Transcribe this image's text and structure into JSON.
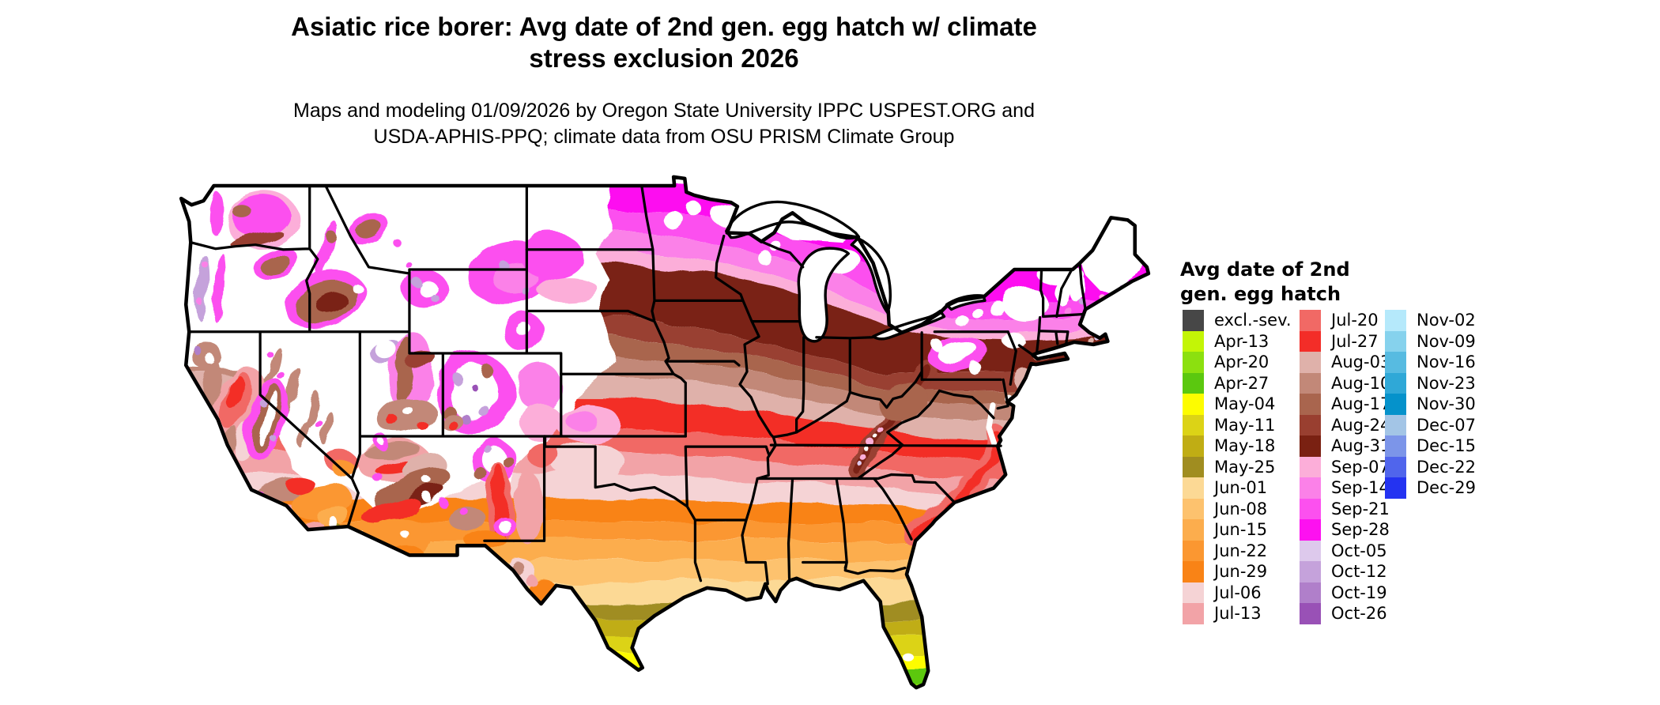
{
  "title": {
    "line1": "Asiatic rice borer: Avg date of 2nd gen. egg hatch w/ climate",
    "line2": "stress exclusion 2026"
  },
  "subtitle": {
    "line1": "Maps and modeling 01/09/2026 by Oregon State University IPPC USPEST.ORG and",
    "line2": "USDA-APHIS-PPQ; climate data from OSU PRISM Climate Group"
  },
  "legend": {
    "title_line1": "Avg date of 2nd",
    "title_line2": "gen. egg hatch",
    "columns": [
      [
        {
          "label": "excl.-sev.",
          "color": "#474747"
        },
        {
          "label": "Apr-13",
          "color": "#c3f506"
        },
        {
          "label": "Apr-20",
          "color": "#8ce00f"
        },
        {
          "label": "Apr-27",
          "color": "#5bc80f"
        },
        {
          "label": "May-04",
          "color": "#fdfc00"
        },
        {
          "label": "May-11",
          "color": "#dcd316"
        },
        {
          "label": "May-18",
          "color": "#c0ad14"
        },
        {
          "label": "May-25",
          "color": "#a08d20"
        },
        {
          "label": "Jun-01",
          "color": "#fcd995"
        },
        {
          "label": "Jun-08",
          "color": "#fdc26e"
        },
        {
          "label": "Jun-15",
          "color": "#fcad4d"
        },
        {
          "label": "Jun-22",
          "color": "#fb9731"
        },
        {
          "label": "Jun-29",
          "color": "#f98316"
        },
        {
          "label": "Jul-06",
          "color": "#f5d3d5"
        },
        {
          "label": "Jul-13",
          "color": "#f2a3a7"
        }
      ],
      [
        {
          "label": "Jul-20",
          "color": "#f16965"
        },
        {
          "label": "Jul-27",
          "color": "#f32d28"
        },
        {
          "label": "Aug-03",
          "color": "#dfb1aa"
        },
        {
          "label": "Aug-10",
          "color": "#c28878"
        },
        {
          "label": "Aug-17",
          "color": "#a9654e"
        },
        {
          "label": "Aug-24",
          "color": "#993f30"
        },
        {
          "label": "Aug-31",
          "color": "#7a2112"
        },
        {
          "label": "Sep-07",
          "color": "#fcaed9"
        },
        {
          "label": "Sep-14",
          "color": "#fb81e8"
        },
        {
          "label": "Sep-21",
          "color": "#fc50ef"
        },
        {
          "label": "Sep-28",
          "color": "#fd11f0"
        },
        {
          "label": "Oct-05",
          "color": "#ddc9ec"
        },
        {
          "label": "Oct-12",
          "color": "#c5a2db"
        },
        {
          "label": "Oct-19",
          "color": "#b07fca"
        },
        {
          "label": "Oct-26",
          "color": "#9951b6"
        }
      ],
      [
        {
          "label": "Nov-02",
          "color": "#b5e9fb"
        },
        {
          "label": "Nov-09",
          "color": "#86d2ed"
        },
        {
          "label": "Nov-16",
          "color": "#57bbe1"
        },
        {
          "label": "Nov-23",
          "color": "#2fa8d7"
        },
        {
          "label": "Nov-30",
          "color": "#0592cb"
        },
        {
          "label": "Dec-07",
          "color": "#a3c5e6"
        },
        {
          "label": "Dec-15",
          "color": "#7c95e9"
        },
        {
          "label": "Dec-22",
          "color": "#5065ec"
        },
        {
          "label": "Dec-29",
          "color": "#2433f1"
        }
      ]
    ]
  },
  "map": {
    "region": "Contiguous United States",
    "background": "#ffffff",
    "boundary_color": "#000000"
  }
}
